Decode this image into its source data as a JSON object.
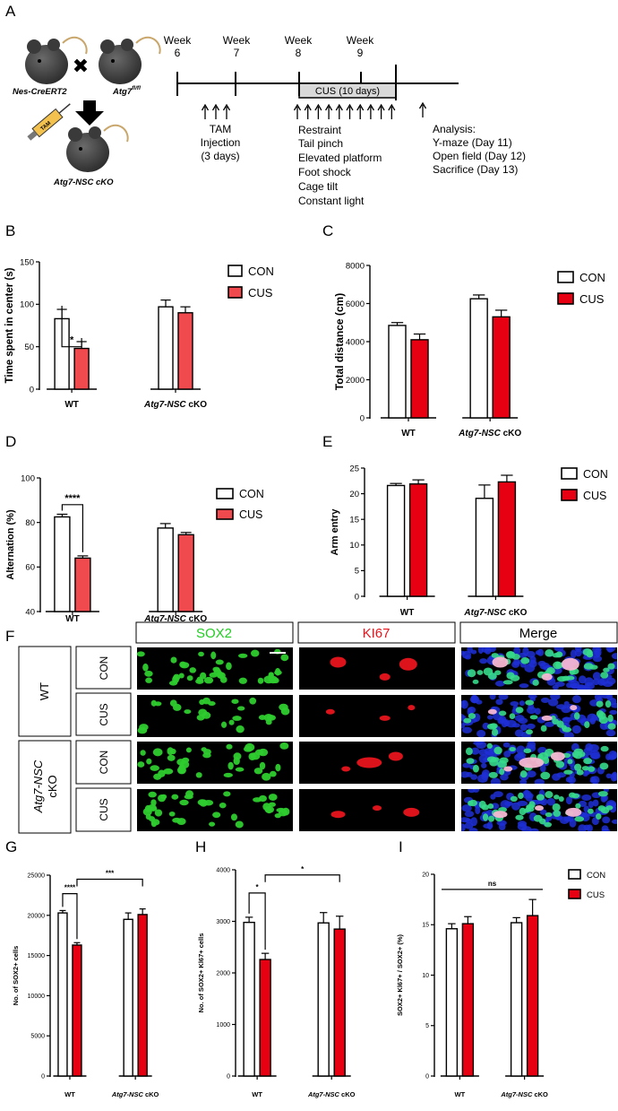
{
  "panel_letters": {
    "a": "A",
    "b": "B",
    "c": "C",
    "d": "D",
    "e": "E",
    "f": "F",
    "g": "G",
    "h": "H",
    "i": "I"
  },
  "colors": {
    "con_fill": "#ffffff",
    "cus_fill": "#e60012",
    "cus_fill_light": "#f04a4f",
    "sox2": "#2ecc2e",
    "ki67": "#e8141c",
    "dapi": "#1f2fd6",
    "axis": "#000000"
  },
  "design": {
    "strain1": "Nes-CreERT2",
    "strain2_base": "Atg7",
    "strain2_sup": "fl/fl",
    "cross_symbol": "✖",
    "tam_syringe_label": "TAM",
    "offspring": "Atg7-NSC cKO",
    "weeks": [
      {
        "label": "Week",
        "num": "6"
      },
      {
        "label": "Week",
        "num": "7"
      },
      {
        "label": "Week",
        "num": "8"
      },
      {
        "label": "Week",
        "num": "9"
      }
    ],
    "cus_label": "CUS (10 days)",
    "tam_injection": [
      "TAM",
      "Injection",
      "(3 days)"
    ],
    "stressors": [
      "Restraint",
      "Tail pinch",
      "Elevated platform",
      "Foot shock",
      "Cage tilt",
      "Constant light"
    ],
    "analysis": [
      "Analysis:",
      "Y-maze (Day 11)",
      "Open field (Day 12)",
      "Sacrifice (Day 13)"
    ],
    "tam_arrow_count": 3,
    "cus_arrow_count": 10
  },
  "legend": {
    "con": "CON",
    "cus": "CUS"
  },
  "groups": {
    "wt": "WT",
    "cko_italic": "Atg7-NSC",
    "cko_plain": " cKO"
  },
  "charts": {
    "b": {
      "type": "bar",
      "ylabel": "Time spent in center (s)",
      "ylim": [
        0,
        150
      ],
      "yticks": [
        0,
        50,
        100,
        150
      ],
      "series": [
        {
          "name": "CON",
          "values": [
            83,
            97
          ],
          "errors": [
            11,
            8
          ]
        },
        {
          "name": "CUS",
          "values": [
            48,
            90
          ],
          "errors": [
            8,
            7
          ]
        }
      ],
      "sig": [
        {
          "label": "*"
        }
      ]
    },
    "c": {
      "type": "bar",
      "ylabel": "Total distance (cm)",
      "ylim": [
        0,
        8000
      ],
      "yticks": [
        0,
        2000,
        4000,
        6000,
        8000
      ],
      "series": [
        {
          "name": "CON",
          "values": [
            4850,
            6250
          ],
          "errors": [
            150,
            200
          ]
        },
        {
          "name": "CUS",
          "values": [
            4100,
            5300
          ],
          "errors": [
            300,
            350
          ]
        }
      ],
      "sig": []
    },
    "d": {
      "type": "bar",
      "ylabel": "Alternation (%)",
      "ylim": [
        40,
        100
      ],
      "yticks": [
        40,
        60,
        80,
        100
      ],
      "series": [
        {
          "name": "CON",
          "values": [
            82.5,
            77.5
          ],
          "errors": [
            1.2,
            2
          ]
        },
        {
          "name": "CUS",
          "values": [
            64,
            74.5
          ],
          "errors": [
            1,
            1
          ]
        }
      ],
      "sig": [
        {
          "label": "****"
        }
      ]
    },
    "e": {
      "type": "bar",
      "ylabel": "Arm entry",
      "ylim": [
        0,
        25
      ],
      "yticks": [
        0,
        5,
        10,
        15,
        20,
        25
      ],
      "series": [
        {
          "name": "CON",
          "values": [
            21.6,
            19.1
          ],
          "errors": [
            0.4,
            2.6
          ]
        },
        {
          "name": "CUS",
          "values": [
            21.9,
            22.3
          ],
          "errors": [
            0.8,
            1.3
          ]
        }
      ],
      "sig": []
    },
    "g": {
      "type": "bar",
      "ylabel": "No. of SOX2+ cells",
      "ylim": [
        0,
        25000
      ],
      "yticks": [
        0,
        5000,
        10000,
        15000,
        20000,
        25000
      ],
      "series": [
        {
          "name": "CON",
          "values": [
            20300,
            19500
          ],
          "errors": [
            300,
            800
          ]
        },
        {
          "name": "CUS",
          "values": [
            16300,
            20100
          ],
          "errors": [
            300,
            700
          ]
        }
      ],
      "sig": [
        {
          "label": "****"
        },
        {
          "label": "***"
        }
      ]
    },
    "h": {
      "type": "bar",
      "ylabel": "No. of SOX2+ Kl67+ cells",
      "ylim": [
        0,
        4000
      ],
      "yticks": [
        0,
        1000,
        2000,
        3000,
        4000
      ],
      "series": [
        {
          "name": "CON",
          "values": [
            2980,
            2970
          ],
          "errors": [
            100,
            200
          ]
        },
        {
          "name": "CUS",
          "values": [
            2260,
            2850
          ],
          "errors": [
            120,
            250
          ]
        }
      ],
      "sig": [
        {
          "label": "*"
        },
        {
          "label": "*"
        }
      ]
    },
    "i": {
      "type": "bar",
      "ylabel": "SOX2+ Kl67+ / SOX2+ (%)",
      "ylim": [
        0,
        20
      ],
      "yticks": [
        0,
        5,
        10,
        15,
        20
      ],
      "series": [
        {
          "name": "CON",
          "values": [
            14.6,
            15.2
          ],
          "errors": [
            0.5,
            0.5
          ]
        },
        {
          "name": "CUS",
          "values": [
            15.1,
            15.9
          ],
          "errors": [
            0.7,
            1.6
          ]
        }
      ],
      "sig": [
        {
          "label": "ns"
        }
      ]
    }
  },
  "micro": {
    "columns": [
      "SOX2",
      "KI67",
      "Merge"
    ],
    "group_wt": "WT",
    "group_cko": [
      "Atg7-NSC",
      "cKO"
    ],
    "conditions": [
      "CON",
      "CUS",
      "CON",
      "CUS"
    ]
  }
}
